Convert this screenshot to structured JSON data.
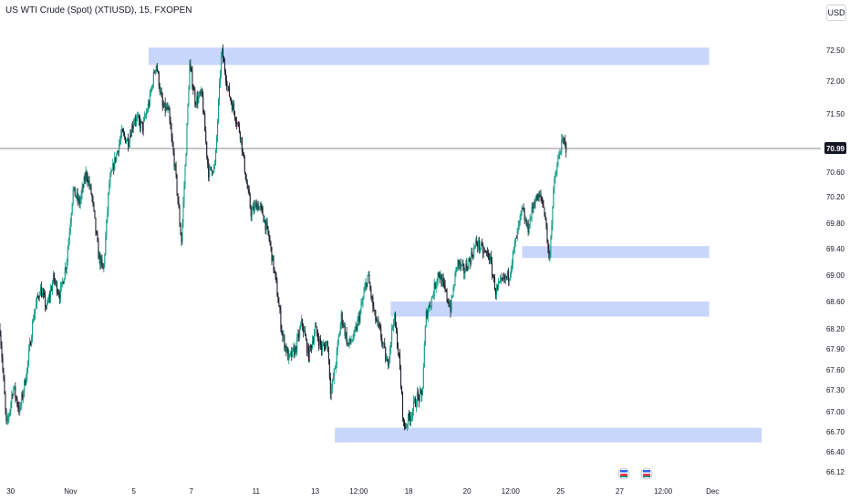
{
  "header": {
    "title": "US WTI Crude (Spot) (XTIUSD), 15, FXOPEN",
    "currency_button": "USD"
  },
  "colors": {
    "up": "#089981",
    "down": "#131722",
    "zone": "#c9d6fb",
    "price_line": "#131722",
    "price_label_bg": "#131722",
    "axis_text": "#131722"
  },
  "chart_data": {
    "type": "line",
    "title": "US WTI Crude (Spot) (XTIUSD), 15, FXOPEN",
    "xlabel": "",
    "ylabel": "",
    "grid": false,
    "xlim": [
      0,
      100
    ],
    "ylim": [
      66.0,
      72.75
    ],
    "y_ticks": [
      "72.50",
      "72.00",
      "71.50",
      "70.99",
      "70.60",
      "70.20",
      "69.80",
      "69.40",
      "69.00",
      "68.60",
      "68.20",
      "67.90",
      "67.60",
      "67.30",
      "67.00",
      "66.70",
      "66.40",
      "66.12"
    ],
    "current_price": 70.99,
    "x_ticks": [
      {
        "label": "30",
        "x": 1.3
      },
      {
        "label": "Nov",
        "x": 8.6
      },
      {
        "label": "5",
        "x": 16.3
      },
      {
        "label": "7",
        "x": 23.3
      },
      {
        "label": "11",
        "x": 31.2
      },
      {
        "label": "13",
        "x": 38.4
      },
      {
        "label": "12:00",
        "x": 43.7
      },
      {
        "label": "18",
        "x": 49.8
      },
      {
        "label": "20",
        "x": 56.9
      },
      {
        "label": "12:00",
        "x": 62.2
      },
      {
        "label": "25",
        "x": 68.3
      },
      {
        "label": "27",
        "x": 75.5
      },
      {
        "label": "12:00",
        "x": 80.8
      },
      {
        "label": "Dec",
        "x": 86.8
      }
    ],
    "zones": [
      {
        "x_start": 18.1,
        "x_end": 86.4,
        "y_low": 72.26,
        "y_high": 72.54
      },
      {
        "x_start": 63.6,
        "x_end": 86.4,
        "y_low": 69.26,
        "y_high": 69.44
      },
      {
        "x_start": 47.6,
        "x_end": 86.4,
        "y_low": 68.38,
        "y_high": 68.6
      },
      {
        "x_start": 40.8,
        "x_end": 92.8,
        "y_low": 66.54,
        "y_high": 66.76
      }
    ],
    "series": [
      {
        "values": [
          [
            0.0,
            68.2
          ],
          [
            0.8,
            66.75
          ],
          [
            1.6,
            67.35
          ],
          [
            2.4,
            67.0
          ],
          [
            3.3,
            67.6
          ],
          [
            4.1,
            68.4
          ],
          [
            4.9,
            68.8
          ],
          [
            5.7,
            68.5
          ],
          [
            6.5,
            68.95
          ],
          [
            7.3,
            68.7
          ],
          [
            8.1,
            69.2
          ],
          [
            8.9,
            70.3
          ],
          [
            9.7,
            70.1
          ],
          [
            10.5,
            70.6
          ],
          [
            11.2,
            70.2
          ],
          [
            12.0,
            69.3
          ],
          [
            12.6,
            69.05
          ],
          [
            13.3,
            70.4
          ],
          [
            14.0,
            70.8
          ],
          [
            14.8,
            71.2
          ],
          [
            15.6,
            71.1
          ],
          [
            16.4,
            71.45
          ],
          [
            17.4,
            71.3
          ],
          [
            18.2,
            71.7
          ],
          [
            19.0,
            72.3
          ],
          [
            19.8,
            71.6
          ],
          [
            20.5,
            71.55
          ],
          [
            21.3,
            70.7
          ],
          [
            22.1,
            69.5
          ],
          [
            22.6,
            70.8
          ],
          [
            23.1,
            72.25
          ],
          [
            23.8,
            71.7
          ],
          [
            24.6,
            71.8
          ],
          [
            25.4,
            70.6
          ],
          [
            26.2,
            70.7
          ],
          [
            27.0,
            72.5
          ],
          [
            27.8,
            71.85
          ],
          [
            28.6,
            71.5
          ],
          [
            29.3,
            71.2
          ],
          [
            30.0,
            70.45
          ],
          [
            30.6,
            69.95
          ],
          [
            31.3,
            70.1
          ],
          [
            32.0,
            69.95
          ],
          [
            32.8,
            69.55
          ],
          [
            33.6,
            68.9
          ],
          [
            34.4,
            68.1
          ],
          [
            35.2,
            67.75
          ],
          [
            36.0,
            67.9
          ],
          [
            36.8,
            68.3
          ],
          [
            37.6,
            67.8
          ],
          [
            38.4,
            68.2
          ],
          [
            39.2,
            67.9
          ],
          [
            39.9,
            68.0
          ],
          [
            40.3,
            67.25
          ],
          [
            40.9,
            67.7
          ],
          [
            41.6,
            68.4
          ],
          [
            42.4,
            67.95
          ],
          [
            43.2,
            68.1
          ],
          [
            44.0,
            68.5
          ],
          [
            44.8,
            69.0
          ],
          [
            45.6,
            68.4
          ],
          [
            46.4,
            68.1
          ],
          [
            47.2,
            67.65
          ],
          [
            48.0,
            68.4
          ],
          [
            48.6,
            67.8
          ],
          [
            49.2,
            66.75
          ],
          [
            50.0,
            66.95
          ],
          [
            50.8,
            67.2
          ],
          [
            51.4,
            67.2
          ],
          [
            51.9,
            68.4
          ],
          [
            52.6,
            68.65
          ],
          [
            53.4,
            69.05
          ],
          [
            54.1,
            68.8
          ],
          [
            54.9,
            68.5
          ],
          [
            55.7,
            69.2
          ],
          [
            56.5,
            69.05
          ],
          [
            57.3,
            69.25
          ],
          [
            58.1,
            69.5
          ],
          [
            58.9,
            69.35
          ],
          [
            59.6,
            69.3
          ],
          [
            60.4,
            68.75
          ],
          [
            61.2,
            68.9
          ],
          [
            62.0,
            69.0
          ],
          [
            62.8,
            69.5
          ],
          [
            63.6,
            70.0
          ],
          [
            64.3,
            69.7
          ],
          [
            65.1,
            70.15
          ],
          [
            65.9,
            70.2
          ],
          [
            66.4,
            69.95
          ],
          [
            66.9,
            69.2
          ],
          [
            67.5,
            70.4
          ],
          [
            68.2,
            70.95
          ],
          [
            68.6,
            71.1
          ],
          [
            69.0,
            70.99
          ]
        ]
      }
    ]
  }
}
